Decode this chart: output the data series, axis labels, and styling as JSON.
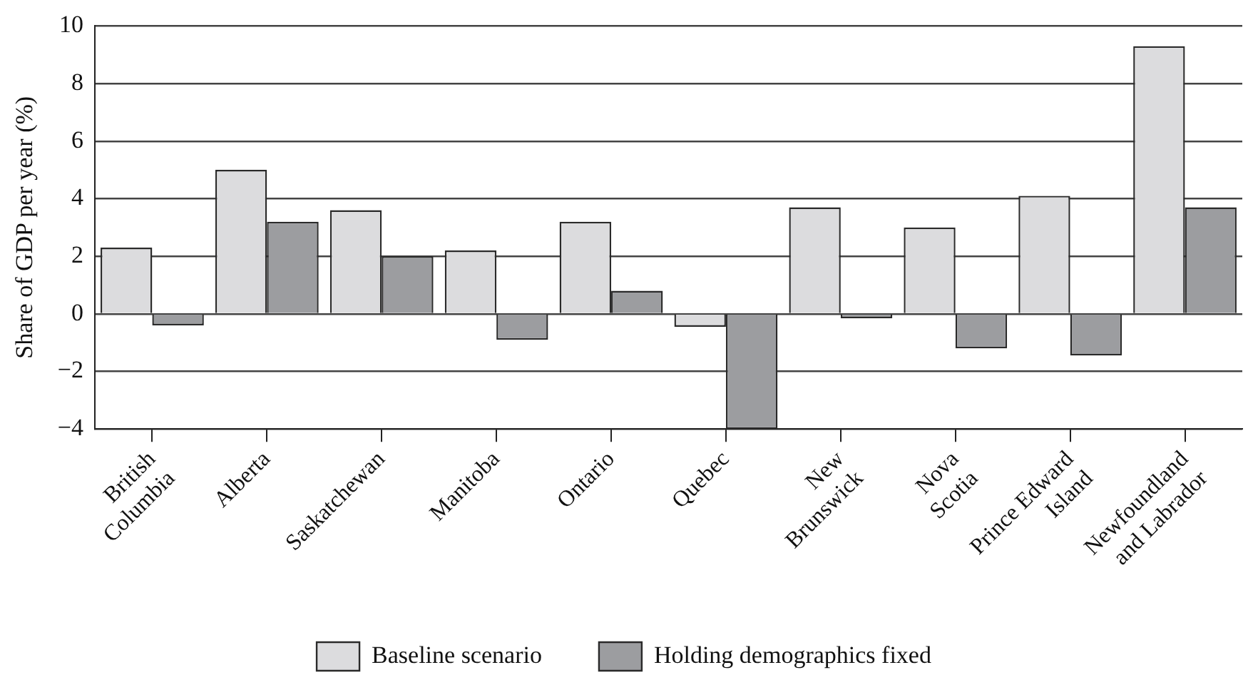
{
  "chart_data": {
    "type": "bar",
    "ylabel": "Share of GDP per year (%)",
    "categories": [
      "British\nColumbia",
      "Alberta",
      "Saskatchewan",
      "Manitoba",
      "Ontario",
      "Quebec",
      "New\nBrunswick",
      "Nova\nScotia",
      "Prince Edward\nIsland",
      "Newfoundland\nand Labrador"
    ],
    "series": [
      {
        "name": "Baseline scenario",
        "color": "#dcdcde",
        "values": [
          2.3,
          5.0,
          3.6,
          2.2,
          3.2,
          -0.45,
          3.7,
          3.0,
          4.1,
          9.3
        ]
      },
      {
        "name": "Holding demographics fixed",
        "color": "#9c9da0",
        "values": [
          -0.4,
          3.2,
          2.0,
          -0.9,
          0.8,
          -4.0,
          -0.15,
          -1.2,
          -1.45,
          3.7
        ]
      }
    ],
    "ylim": [
      -4,
      10
    ],
    "yticks": [
      -4,
      -2,
      0,
      2,
      4,
      6,
      8,
      10
    ],
    "grid": "y",
    "legend": "bottom"
  }
}
